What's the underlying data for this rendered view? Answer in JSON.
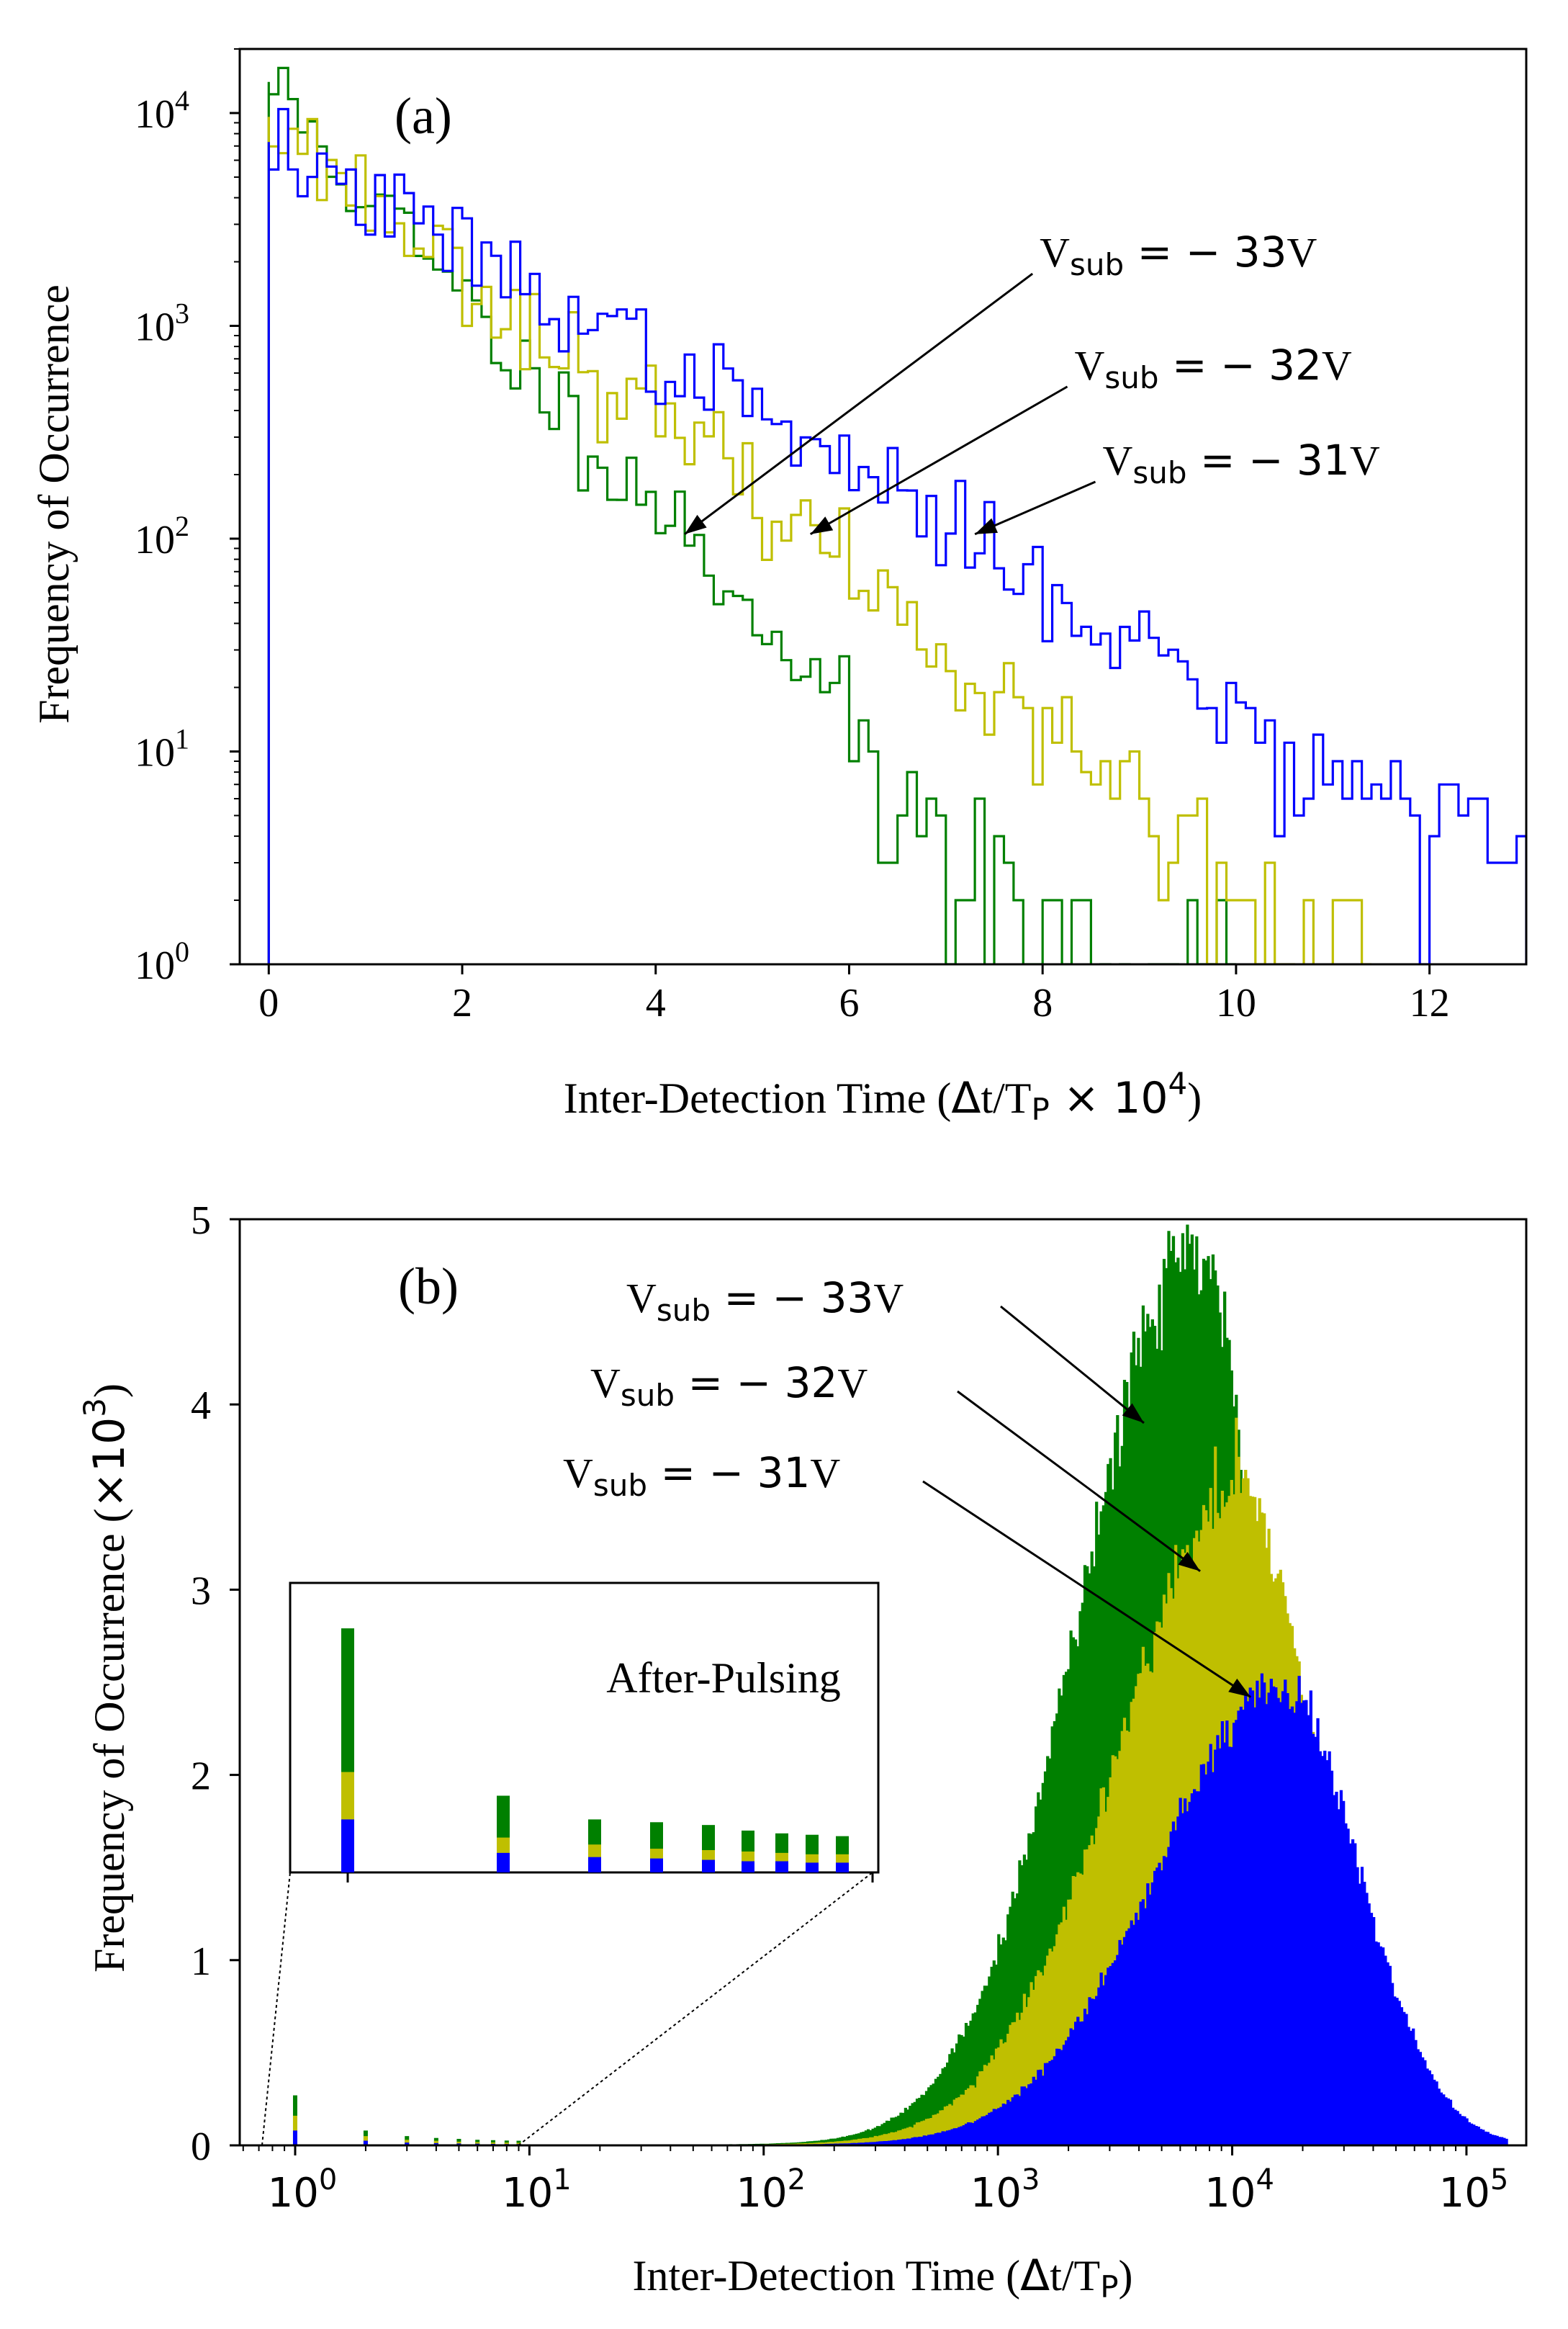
{
  "colors": {
    "v33": "#008000",
    "v32": "#bfbf00",
    "v31": "#0000ff"
  },
  "chart_data": [
    {
      "type": "histogram",
      "panel_label": "(a)",
      "y_scale": "log",
      "xlim": [
        -0.3,
        13
      ],
      "ylim": [
        1,
        20000
      ],
      "xticks": [
        0,
        2,
        4,
        6,
        8,
        10,
        12
      ],
      "yticks": [
        {
          "value": 1,
          "base": "10",
          "exp": "0"
        },
        {
          "value": 10,
          "base": "10",
          "exp": "1"
        },
        {
          "value": 100,
          "base": "10",
          "exp": "2"
        },
        {
          "value": 1000,
          "base": "10",
          "exp": "3"
        },
        {
          "value": 10000,
          "base": "10",
          "exp": "4"
        }
      ],
      "xlabel": {
        "pre": "Inter-Detection Time (",
        "delta": "Δ",
        "t": "t/T",
        "sub": "P",
        "times": " × 10",
        "sup": "4",
        "post": ")"
      },
      "ylabel": "Frequency of Occurrence",
      "bin_width": 0.1,
      "series": [
        {
          "name": "V_sub = -33V",
          "color": "#008000",
          "y0": 14000,
          "knots": [
            [
              0,
              14000
            ],
            [
              1,
              4100
            ],
            [
              2,
              1300
            ],
            [
              3,
              420
            ],
            [
              4,
              150
            ],
            [
              5,
              48
            ],
            [
              6,
              14
            ],
            [
              7,
              3.5
            ],
            [
              8,
              1.3
            ],
            [
              9,
              0.9
            ]
          ],
          "noise": 0.26,
          "seed": 11,
          "xmax": 10.0
        },
        {
          "name": "V_sub = -32V",
          "color": "#bfbf00",
          "y0": 9600,
          "knots": [
            [
              0,
              9600
            ],
            [
              1,
              4050
            ],
            [
              2,
              1800
            ],
            [
              3,
              800
            ],
            [
              4,
              360
            ],
            [
              5,
              170
            ],
            [
              6,
              75
            ],
            [
              7,
              30
            ],
            [
              8,
              12
            ],
            [
              9,
              5
            ],
            [
              10,
              2
            ],
            [
              11,
              1.2
            ],
            [
              12,
              0.9
            ]
          ],
          "noise": 0.25,
          "seed": 23,
          "xmax": 11.4
        },
        {
          "name": "V_sub = -31V",
          "color": "#0000ff",
          "y0": 7300,
          "knots": [
            [
              0,
              7300
            ],
            [
              1,
              3900
            ],
            [
              2,
              2300
            ],
            [
              3,
              1300
            ],
            [
              4,
              720
            ],
            [
              5,
              400
            ],
            [
              6,
              215
            ],
            [
              7,
              115
            ],
            [
              8,
              60
            ],
            [
              9,
              32
            ],
            [
              10,
              16
            ],
            [
              11,
              8.5
            ],
            [
              12,
              5
            ],
            [
              13,
              4
            ]
          ],
          "noise": 0.24,
          "seed": 37,
          "xmax": 13.0
        }
      ],
      "annotations": [
        {
          "label_base": "V",
          "label_sub": "sub",
          "label_eq": " = − 33",
          "label_unit": "V",
          "text_x": 7.97,
          "text_y": 1900,
          "target_x": 4.3,
          "target_y": 105
        },
        {
          "label_base": "V",
          "label_sub": "sub",
          "label_eq": " = − 32",
          "label_unit": "V",
          "text_x": 8.33,
          "text_y": 560,
          "target_x": 5.6,
          "target_y": 105
        },
        {
          "label_base": "V",
          "label_sub": "sub",
          "label_eq": " = − 31",
          "label_unit": "V",
          "text_x": 8.62,
          "text_y": 200,
          "target_x": 7.3,
          "target_y": 105
        }
      ]
    },
    {
      "type": "histogram",
      "panel_label": "(b)",
      "x_scale": "log",
      "xlim": [
        0.58,
        180000
      ],
      "ylim": [
        0,
        5
      ],
      "xticks": [
        {
          "value": 1,
          "base": "10",
          "exp": "0"
        },
        {
          "value": 10,
          "base": "10",
          "exp": "1"
        },
        {
          "value": 100,
          "base": "10",
          "exp": "2"
        },
        {
          "value": 1000,
          "base": "10",
          "exp": "3"
        },
        {
          "value": 10000,
          "base": "10",
          "exp": "4"
        },
        {
          "value": 100000,
          "base": "10",
          "exp": "5"
        }
      ],
      "yticks": [
        0,
        1,
        2,
        3,
        4,
        5
      ],
      "xlabel": {
        "pre": "Inter-Detection Time (",
        "delta": "Δ",
        "t": "t/T",
        "sub": "P",
        "post": ")"
      },
      "ylabel": {
        "pre": "Frequency of Occurrence (",
        "times": "×10",
        "sup": "3",
        "post": ")"
      },
      "series": [
        {
          "name": "V_sub = -33V",
          "color": "#008000",
          "peak_x": 7000,
          "peak_y": 4.8,
          "sigma_dec": 0.46,
          "tail_w_dec": 0.55,
          "tail_amp": 0.035
        },
        {
          "name": "V_sub = -32V",
          "color": "#bfbf00",
          "peak_x": 11000,
          "peak_y": 3.5,
          "sigma_dec": 0.5,
          "tail_w_dec": 0.55,
          "tail_amp": 0.03
        },
        {
          "name": "V_sub = -31V",
          "color": "#0000ff",
          "peak_x": 17000,
          "peak_y": 2.42,
          "sigma_dec": 0.52,
          "tail_w_dec": 0.55,
          "tail_amp": 0.025
        }
      ],
      "afterpulse_spikes": [
        {
          "x": 1,
          "green": 0.27,
          "yellow": 0.16,
          "blue": 0.08
        },
        {
          "x": 2,
          "green": 0.08,
          "yellow": 0.05,
          "blue": 0.025
        },
        {
          "x": 3,
          "green": 0.05,
          "yellow": 0.03,
          "blue": 0.015
        },
        {
          "x": 4,
          "green": 0.04,
          "yellow": 0.025,
          "blue": 0.012
        },
        {
          "x": 5,
          "green": 0.035,
          "yellow": 0.02,
          "blue": 0.01
        },
        {
          "x": 6,
          "green": 0.03,
          "yellow": 0.018,
          "blue": 0.009
        },
        {
          "x": 7,
          "green": 0.028,
          "yellow": 0.016,
          "blue": 0.008
        },
        {
          "x": 8,
          "green": 0.026,
          "yellow": 0.015,
          "blue": 0.007
        },
        {
          "x": 9,
          "green": 0.025,
          "yellow": 0.014,
          "blue": 0.007
        }
      ],
      "annotations": [
        {
          "label_base": "V",
          "label_sub": "sub",
          "label_eq": " = − 33",
          "label_unit": "V",
          "text_x": 1.66,
          "text_y": 4.6,
          "target_x": 4200,
          "target_y": 3.9
        },
        {
          "label_base": "V",
          "label_sub": "sub",
          "label_eq": " = − 32",
          "label_unit": "V",
          "text_x": 1.28,
          "text_y": 4.1,
          "target_x": 7300,
          "target_y": 3.1
        },
        {
          "label_base": "V",
          "label_sub": "sub",
          "label_eq": " = − 31",
          "label_unit": "V",
          "text_x": 1.0,
          "text_y": 3.6,
          "target_x": 12000,
          "target_y": 2.42
        }
      ],
      "inset": {
        "label": "After-Pulsing",
        "bars": [
          {
            "green": 2.75,
            "yellow": 1.72,
            "blue": 1.38
          },
          {
            "green": 1.55,
            "yellow": 1.25,
            "blue": 1.14
          },
          {
            "green": 1.38,
            "yellow": 1.2,
            "blue": 1.11
          },
          {
            "green": 1.36,
            "yellow": 1.17,
            "blue": 1.1
          },
          {
            "green": 1.34,
            "yellow": 1.16,
            "blue": 1.09
          },
          {
            "green": 1.3,
            "yellow": 1.15,
            "blue": 1.08
          },
          {
            "green": 1.28,
            "yellow": 1.14,
            "blue": 1.08
          },
          {
            "green": 1.27,
            "yellow": 1.13,
            "blue": 1.07
          },
          {
            "green": 1.26,
            "yellow": 1.13,
            "blue": 1.07
          }
        ]
      }
    }
  ]
}
